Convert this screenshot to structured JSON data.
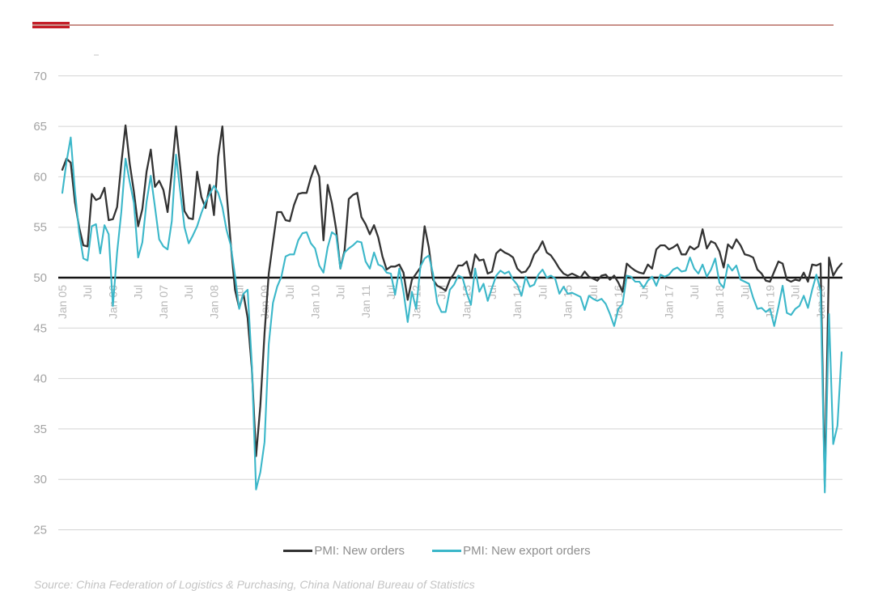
{
  "header": {
    "accent_bar_color": "#c41e28",
    "rule_color": "#c9918a"
  },
  "legend": {
    "items": [
      {
        "label": "PMI: New orders",
        "color": "#333333"
      },
      {
        "label": "PMI: New export orders",
        "color": "#3bb7c9"
      }
    ]
  },
  "source": {
    "text": "Source: China Federation of Logistics & Purchasing, China National Bureau of Statistics"
  },
  "chart_data": {
    "type": "line",
    "title": "",
    "frequency": "monthly",
    "period_start": "Jan 2005",
    "period_end": "Jun 2020",
    "grid": true,
    "legend_position": "bottom",
    "y_axis": {
      "min": 25,
      "max": 70,
      "baseline": 50,
      "ticks": [
        70,
        65,
        60,
        55,
        50,
        45,
        40,
        35,
        30,
        25
      ],
      "tick_color": "#a3a3a3",
      "grid_color": "#d4d4d4",
      "baseline_color": "#141414"
    },
    "x_axis": {
      "tick_month_interval": 6,
      "label_color": "#b9b9b9",
      "tick_labels": [
        "Jan 05",
        "Jul",
        "Jan 06",
        "Jul",
        "Jan 07",
        "Jul",
        "Jan 08",
        "Jul",
        "Jan 09",
        "Jul",
        "Jan 10",
        "Jul",
        "Jan 11",
        "Jul",
        "Jan 12",
        "Jul",
        "Jan 13",
        "Jul",
        "Jan 14",
        "Jul",
        "Jan 15",
        "Jul",
        "Jan 16",
        "Jul",
        "Jan 17",
        "Jul",
        "Jan 18",
        "Jul",
        "Jan 19",
        "Jul",
        "Jan 20"
      ]
    },
    "series": [
      {
        "name": "PMI: New orders",
        "color": "#333333",
        "values": [
          60.7,
          61.8,
          61.4,
          57.5,
          55.0,
          53.2,
          53.1,
          58.3,
          57.7,
          57.9,
          58.9,
          55.7,
          55.8,
          57.0,
          61.3,
          65.1,
          61.3,
          58.5,
          55.1,
          56.8,
          60.5,
          62.7,
          59.0,
          59.6,
          58.7,
          56.5,
          60.5,
          65.0,
          60.9,
          56.6,
          55.9,
          55.8,
          60.5,
          58.0,
          56.9,
          59.2,
          56.2,
          62.0,
          65.0,
          58.5,
          53.3,
          48.8,
          47.0,
          48.4,
          46.0,
          41.0,
          32.3,
          37.3,
          44.5,
          50.4,
          53.5,
          56.5,
          56.5,
          55.7,
          55.6,
          57.2,
          58.3,
          58.4,
          58.4,
          59.9,
          61.1,
          60.0,
          53.7,
          59.2,
          57.4,
          54.8,
          50.9,
          52.7,
          57.8,
          58.2,
          58.4,
          56.0,
          55.3,
          54.3,
          55.2,
          54.0,
          52.1,
          50.8,
          51.1,
          51.1,
          51.3,
          50.5,
          47.8,
          49.8,
          50.4,
          51.0,
          55.1,
          53.0,
          49.8,
          49.2,
          49.0,
          48.7,
          49.8,
          50.4,
          51.2,
          51.2,
          51.6,
          50.1,
          52.3,
          51.7,
          51.8,
          50.4,
          50.6,
          52.4,
          52.8,
          52.5,
          52.3,
          52.0,
          50.9,
          50.5,
          50.6,
          51.2,
          52.3,
          52.8,
          53.6,
          52.5,
          52.2,
          51.6,
          50.9,
          50.4,
          50.2,
          50.4,
          50.2,
          50.0,
          50.6,
          50.1,
          49.9,
          49.7,
          50.2,
          50.3,
          49.8,
          50.2,
          49.5,
          48.6,
          51.4,
          51.0,
          50.7,
          50.5,
          50.4,
          51.3,
          50.9,
          52.8,
          53.2,
          53.2,
          52.8,
          53.0,
          53.3,
          52.3,
          52.3,
          53.1,
          52.8,
          53.1,
          54.8,
          52.9,
          53.6,
          53.4,
          52.6,
          51.0,
          53.3,
          52.9,
          53.8,
          53.2,
          52.3,
          52.2,
          52.0,
          50.8,
          50.4,
          49.7,
          49.6,
          50.6,
          51.6,
          51.4,
          49.8,
          49.6,
          49.8,
          49.7,
          50.5,
          49.6,
          51.3,
          51.2,
          51.4,
          29.3,
          52.0,
          50.2,
          50.9,
          51.4
        ]
      },
      {
        "name": "PMI: New export orders",
        "color": "#3bb7c9",
        "values": [
          58.4,
          61.5,
          63.9,
          58.6,
          54.5,
          51.9,
          51.7,
          55.1,
          55.3,
          52.4,
          55.2,
          54.3,
          47.2,
          52.5,
          56.5,
          61.8,
          59.5,
          57.4,
          52.0,
          53.5,
          57.5,
          60.1,
          57.0,
          53.8,
          53.1,
          52.8,
          55.6,
          62.2,
          58.5,
          55.0,
          53.4,
          54.2,
          55.1,
          56.4,
          57.5,
          58.3,
          59.1,
          58.4,
          57.0,
          54.7,
          53.2,
          50.2,
          46.9,
          48.4,
          48.8,
          41.4,
          29.0,
          30.7,
          33.7,
          43.4,
          47.5,
          49.1,
          50.1,
          52.1,
          52.3,
          52.3,
          53.7,
          54.4,
          54.5,
          53.4,
          52.9,
          51.2,
          50.5,
          53.0,
          54.5,
          54.2,
          50.9,
          52.5,
          52.9,
          53.2,
          53.6,
          53.5,
          51.6,
          50.9,
          52.5,
          51.3,
          51.1,
          50.5,
          50.4,
          48.3,
          50.9,
          48.6,
          45.6,
          48.6,
          46.9,
          51.1,
          51.9,
          52.2,
          50.4,
          47.5,
          46.6,
          46.6,
          48.8,
          49.3,
          50.2,
          50.0,
          48.5,
          47.3,
          50.9,
          48.6,
          49.4,
          47.7,
          49.0,
          50.2,
          50.7,
          50.4,
          50.6,
          49.8,
          49.3,
          48.2,
          50.1,
          49.1,
          49.3,
          50.3,
          50.8,
          50.0,
          50.2,
          49.9,
          48.4,
          49.1,
          48.4,
          48.5,
          48.3,
          48.1,
          46.8,
          48.2,
          47.9,
          47.7,
          47.9,
          47.4,
          46.4,
          45.2,
          46.9,
          47.4,
          50.2,
          50.1,
          49.6,
          49.6,
          49.0,
          49.7,
          50.1,
          49.2,
          50.3,
          50.1,
          50.3,
          50.8,
          51.0,
          50.6,
          50.7,
          52.0,
          50.9,
          50.4,
          51.3,
          50.1,
          50.8,
          51.9,
          49.5,
          49.0,
          51.3,
          50.7,
          51.2,
          49.8,
          49.6,
          49.4,
          48.0,
          46.9,
          47.0,
          46.6,
          46.9,
          45.2,
          47.1,
          49.2,
          46.5,
          46.3,
          46.9,
          47.2,
          48.2,
          47.0,
          48.8,
          50.3,
          48.7,
          28.7,
          46.4,
          33.5,
          35.3,
          42.6
        ]
      }
    ]
  }
}
